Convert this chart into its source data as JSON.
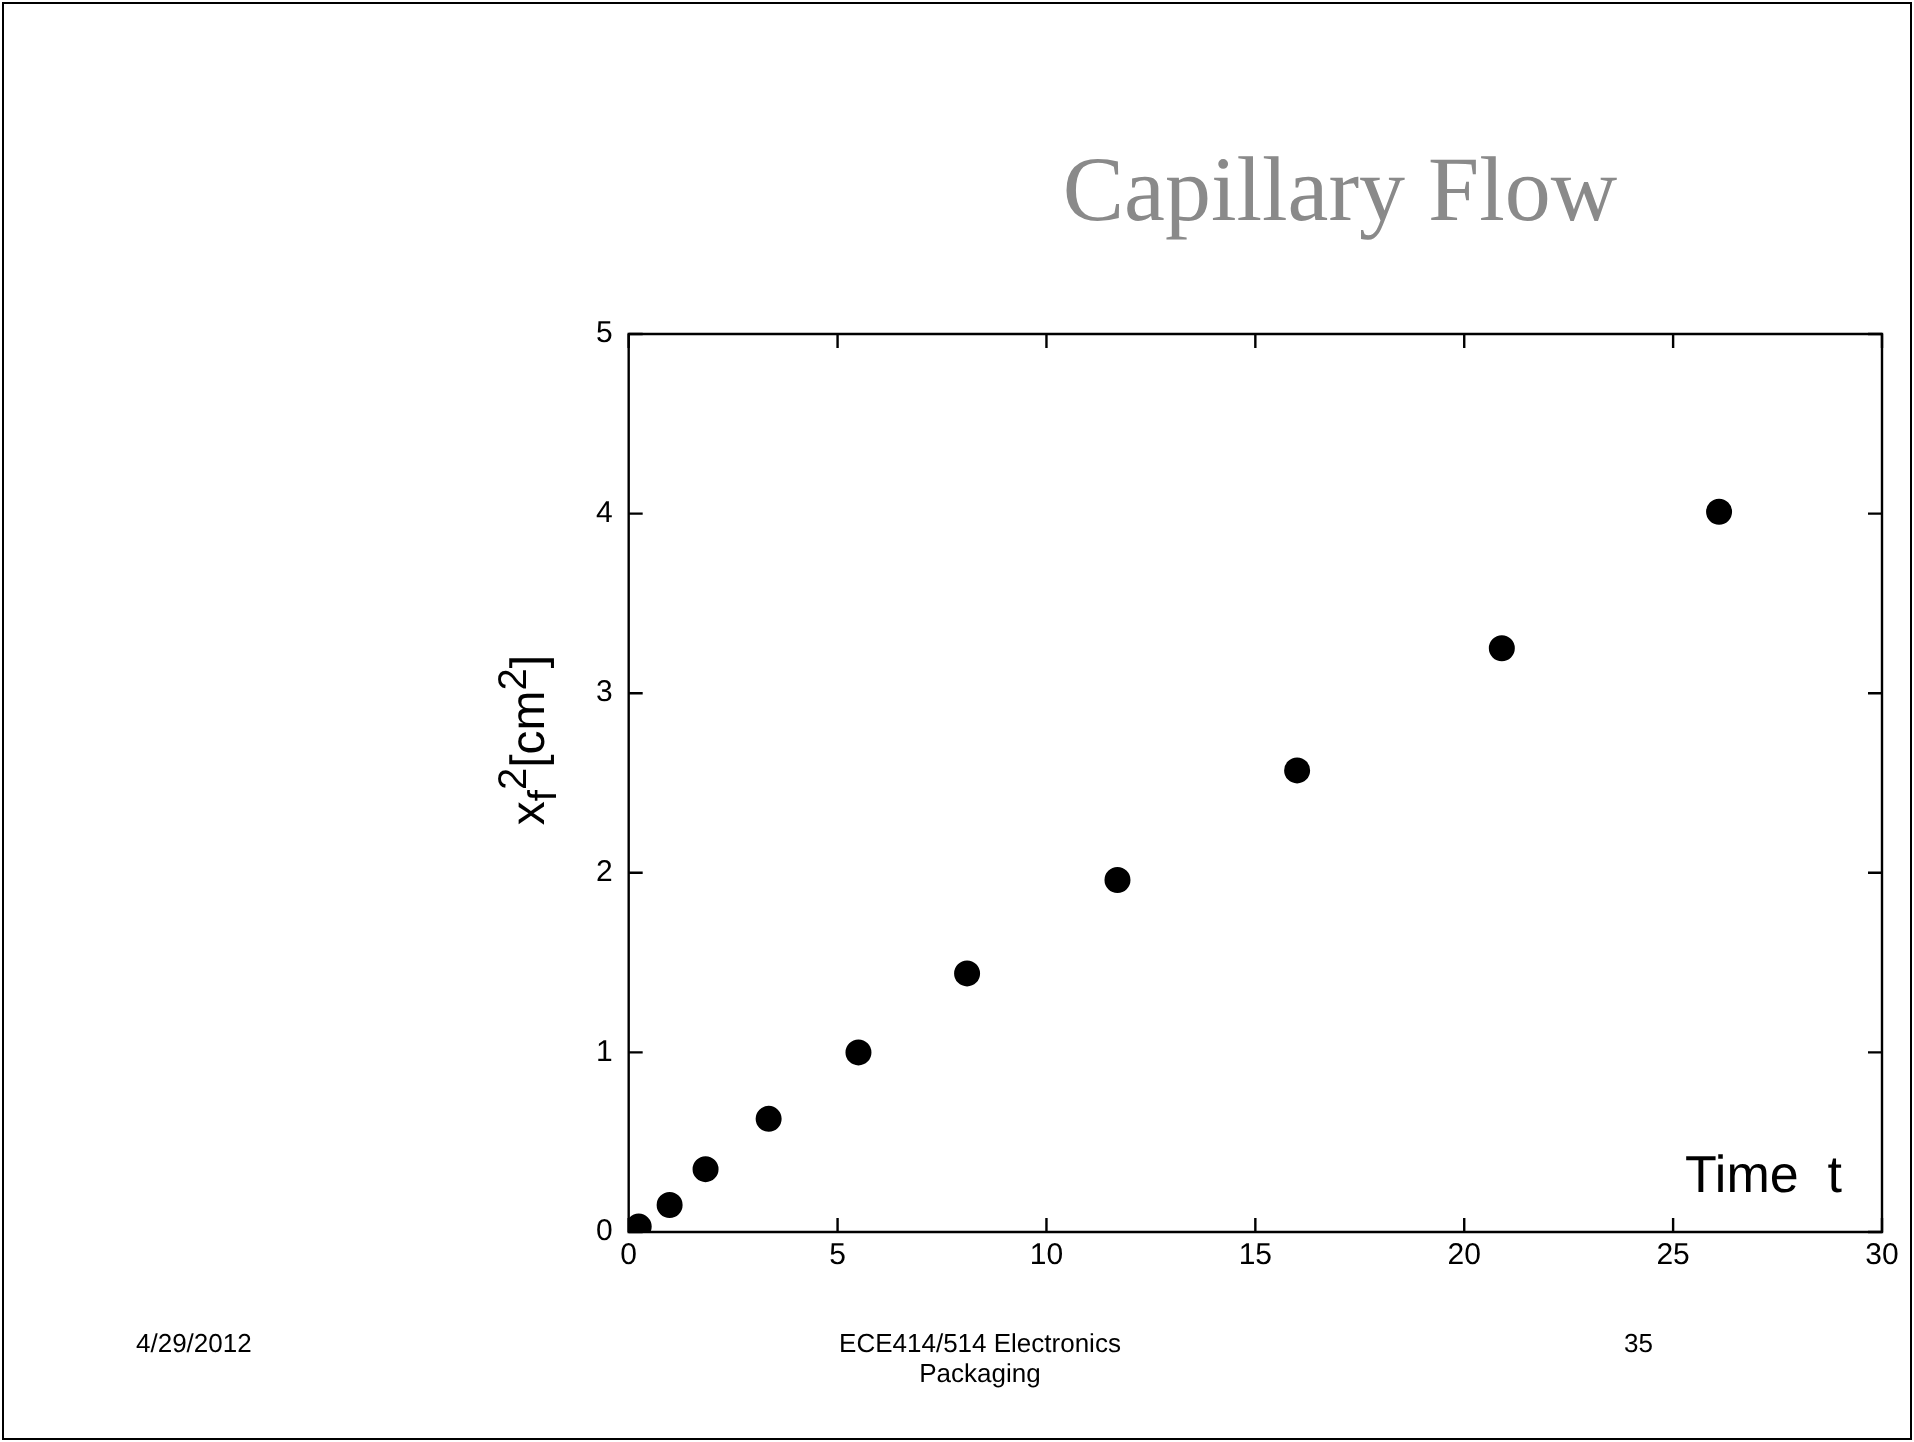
{
  "chart_data": {
    "type": "scatter",
    "title": "Capillary Flow",
    "xlabel": "Time  t",
    "ylabel": "x$_{f}$$^{2}$[cm$^{2}$]",
    "x": [
      0.24,
      0.98,
      1.84,
      3.35,
      5.5,
      8.1,
      11.7,
      16.0,
      20.9,
      26.1
    ],
    "series": [
      {
        "color": "#000000",
        "values": [
          0.03,
          0.15,
          0.35,
          0.63,
          1.0,
          1.44,
          1.96,
          2.57,
          3.25,
          4.01
        ]
      }
    ],
    "xlim": [
      0,
      30
    ],
    "xticks": [
      0,
      5,
      10,
      15,
      20,
      25,
      30
    ],
    "ylim": [
      0,
      5
    ],
    "yticks": [
      0,
      1,
      2,
      3,
      4,
      5
    ],
    "grid": false,
    "legend": false,
    "marker": "circle",
    "annotations": [
      "4/29/2012",
      "ECE414/514 Electronics Packaging",
      "35"
    ]
  }
}
